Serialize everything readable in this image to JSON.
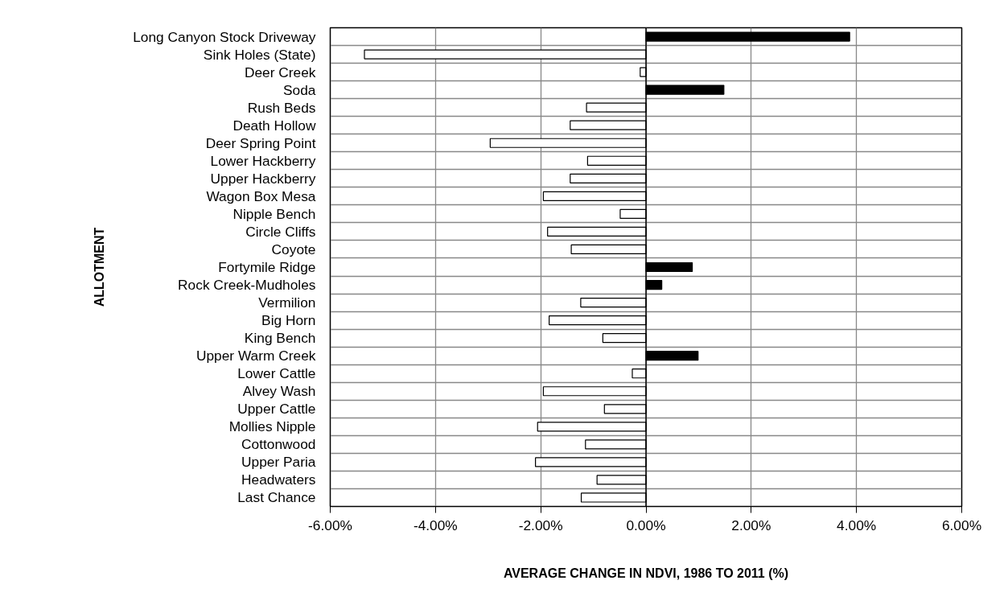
{
  "chart_data": {
    "type": "bar",
    "orientation": "horizontal",
    "xlabel": "AVERAGE CHANGE IN NDVI, 1986 TO 2011 (%)",
    "ylabel": "ALLOTMENT",
    "categories": [
      "Long Canyon Stock Driveway",
      "Sink Holes (State)",
      "Deer Creek",
      "Soda",
      "Rush Beds",
      "Death Hollow",
      "Deer Spring Point",
      "Lower Hackberry",
      "Upper Hackberry",
      "Wagon Box Mesa",
      "Nipple Bench",
      "Circle Cliffs",
      "Coyote",
      "Fortymile Ridge",
      "Rock Creek-Mudholes",
      "Vermilion",
      "Big Horn",
      "King Bench",
      "Upper Warm Creek",
      "Lower Cattle",
      "Alvey Wash",
      "Upper Cattle",
      "Mollies Nipple",
      "Cottonwood",
      "Upper Paria",
      "Headwaters",
      "Last Chance"
    ],
    "values": [
      3.87,
      -5.35,
      -0.11,
      1.48,
      -1.13,
      -1.44,
      -2.96,
      -1.11,
      -1.44,
      -1.95,
      -0.49,
      -1.87,
      -1.42,
      0.88,
      0.3,
      -1.24,
      -1.84,
      -0.82,
      0.99,
      -0.26,
      -1.95,
      -0.79,
      -2.06,
      -1.15,
      -2.1,
      -0.93,
      -1.23
    ],
    "colors": [
      "#000000",
      "#ffffff",
      "#ffffff",
      "#000000",
      "#ffffff",
      "#ffffff",
      "#ffffff",
      "#ffffff",
      "#ffffff",
      "#ffffff",
      "#ffffff",
      "#ffffff",
      "#ffffff",
      "#000000",
      "#000000",
      "#ffffff",
      "#ffffff",
      "#ffffff",
      "#000000",
      "#ffffff",
      "#ffffff",
      "#ffffff",
      "#ffffff",
      "#ffffff",
      "#ffffff",
      "#ffffff",
      "#ffffff"
    ],
    "xlim": [
      -6,
      6
    ],
    "xticks": [
      {
        "value": -6,
        "label": "-6.00%"
      },
      {
        "value": -4,
        "label": "-4.00%"
      },
      {
        "value": -2,
        "label": "-2.00%"
      },
      {
        "value": 0,
        "label": "0.00%"
      },
      {
        "value": 2,
        "label": "2.00%"
      },
      {
        "value": 4,
        "label": "4.00%"
      },
      {
        "value": 6,
        "label": "6.00%"
      }
    ],
    "grid": true
  }
}
